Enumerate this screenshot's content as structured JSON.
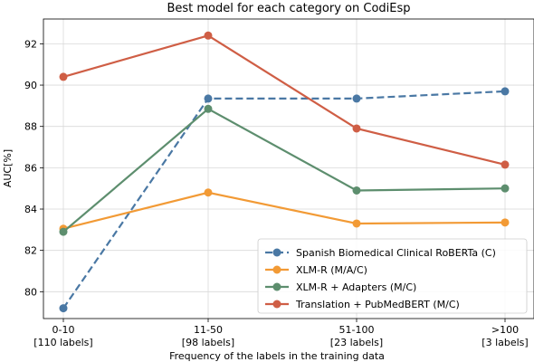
{
  "chart_data": {
    "type": "line",
    "title": "Best model for each category on CodiEsp",
    "xlabel": "Frequency of the labels in the training data",
    "ylabel": "AUC[%]",
    "categories": [
      [
        "0-10",
        "[110 labels]"
      ],
      [
        "11-50",
        "[98 labels]"
      ],
      [
        "51-100",
        "[23 labels]"
      ],
      [
        ">100",
        "[3 labels]"
      ]
    ],
    "ylim": [
      78.7,
      93.2
    ],
    "yticks": [
      80,
      82,
      84,
      86,
      88,
      90,
      92
    ],
    "grid": true,
    "legend_position": "lower-right",
    "series": [
      {
        "name": "Spanish Biomedical Clinical RoBERTa (C)",
        "color": "#4a78a4",
        "dashed": true,
        "values": [
          79.2,
          89.35,
          89.35,
          89.7
        ]
      },
      {
        "name": "XLM-R (M/A/C)",
        "color": "#f29a35",
        "dashed": false,
        "values": [
          83.05,
          84.8,
          83.3,
          83.35
        ]
      },
      {
        "name": "XLM-R + Adapters (M/C)",
        "color": "#5d8e6e",
        "dashed": false,
        "values": [
          82.9,
          88.85,
          84.9,
          85.0
        ]
      },
      {
        "name": "Translation + PubMedBERT (M/C)",
        "color": "#cf5e45",
        "dashed": false,
        "values": [
          90.4,
          92.4,
          87.9,
          86.15
        ]
      }
    ]
  }
}
